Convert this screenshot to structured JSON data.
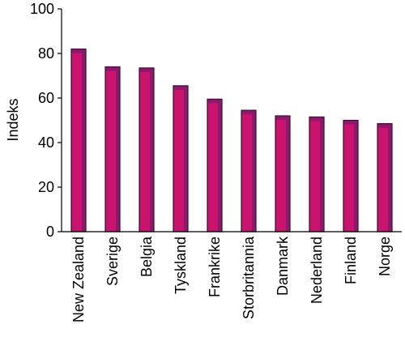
{
  "chart_data": {
    "type": "bar",
    "title": "",
    "xlabel": "",
    "ylabel": "Indeks",
    "ylim": [
      0,
      100
    ],
    "yticks": [
      0,
      20,
      40,
      60,
      80,
      100
    ],
    "grid": false,
    "legend": "none",
    "categories": [
      "New Zealand",
      "Sverige",
      "Belgia",
      "Tyskland",
      "Frankrike",
      "Storbritannia",
      "Danmark",
      "Nederland",
      "Finland",
      "Norge"
    ],
    "values": [
      82,
      74,
      73.5,
      65.5,
      59.5,
      54.5,
      52,
      51.5,
      50,
      48.5
    ],
    "colors": {
      "bar_fill": "#8a1a6e",
      "bar_overlay": "#e0106e",
      "bar_outline": "#3a1030",
      "axis": "#000000"
    }
  }
}
